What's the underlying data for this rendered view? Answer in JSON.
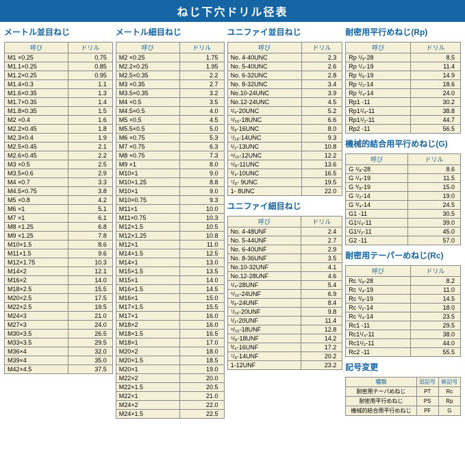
{
  "title": "ねじ下穴ドリル径表",
  "headers": {
    "name": "呼び",
    "drill": "ドリル",
    "type": "種類",
    "old": "旧記号",
    "new": "新記号"
  },
  "sections": {
    "s1": {
      "title": "メートル並目ねじ",
      "rows": [
        [
          "M1 ×0.25",
          "0.75"
        ],
        [
          "M1.1×0.25",
          "0.85"
        ],
        [
          "M1.2×0.25",
          "0.95"
        ],
        [
          "M1.4×0.3",
          "1.1"
        ],
        [
          "M1.6×0.35",
          "1.3"
        ],
        [
          "M1.7×0.35",
          "1.4"
        ],
        [
          "M1.8×0.35",
          "1.5"
        ],
        [
          "M2 ×0.4",
          "1.6"
        ],
        [
          "M2.2×0.45",
          "1.8"
        ],
        [
          "M2.3×0.4",
          "1.9"
        ],
        [
          "M2.5×0.45",
          "2.1"
        ],
        [
          "M2.6×0.45",
          "2.2"
        ],
        [
          "M3 ×0.5",
          "2.5"
        ],
        [
          "M3.5×0.6",
          "2.9"
        ],
        [
          "M4 ×0.7",
          "3.3"
        ],
        [
          "M4.5×0.75",
          "3.8"
        ],
        [
          "M5 ×0.8",
          "4.2"
        ],
        [
          "M6 ×1",
          "5.1"
        ],
        [
          "M7 ×1",
          "6.1"
        ],
        [
          "M8 ×1.25",
          "6.8"
        ],
        [
          "M9 ×1.25",
          "7.8"
        ],
        [
          "M10×1.5",
          "8.6"
        ],
        [
          "M11×1.5",
          "9.6"
        ],
        [
          "M12×1.75",
          "10.3"
        ],
        [
          "M14×2",
          "12.1"
        ],
        [
          "M16×2",
          "14.0"
        ],
        [
          "M18×2.5",
          "15.5"
        ],
        [
          "M20×2.5",
          "17.5"
        ],
        [
          "M22×2.5",
          "19.5"
        ],
        [
          "M24×3",
          "21.0"
        ],
        [
          "M27×3",
          "24.0"
        ],
        [
          "M30×3.5",
          "26.5"
        ],
        [
          "M33×3.5",
          "29.5"
        ],
        [
          "M36×4",
          "32.0"
        ],
        [
          "M39×4",
          "35.0"
        ],
        [
          "M42×4.5",
          "37.5"
        ]
      ]
    },
    "s2": {
      "title": "メートル細目ねじ",
      "rows": [
        [
          "M2 ×0.25",
          "1.75"
        ],
        [
          "M2.2×0.25",
          "1.95"
        ],
        [
          "M2.5×0.35",
          "2.2"
        ],
        [
          "M3 ×0.35",
          "2.7"
        ],
        [
          "M3.5×0.35",
          "3.2"
        ],
        [
          "M4 ×0.5",
          "3.5"
        ],
        [
          "M4.5×0.5",
          "4.0"
        ],
        [
          "M5 ×0.5",
          "4.5"
        ],
        [
          "M5.5×0.5",
          "5.0"
        ],
        [
          "M6 ×0.75",
          "5.3"
        ],
        [
          "M7 ×0.75",
          "6.3"
        ],
        [
          "M8 ×0.75",
          "7.3"
        ],
        [
          "M9 ×1",
          "8.0"
        ],
        [
          "M10×1",
          "9.0"
        ],
        [
          "M10×1.25",
          "8.8"
        ],
        [
          "M10×1",
          "9.0"
        ],
        [
          "M10×0.75",
          "9.3"
        ],
        [
          "M11×1",
          "10.0"
        ],
        [
          "M11×0.75",
          "10.3"
        ],
        [
          "M12×1.5",
          "10.5"
        ],
        [
          "M12×1.25",
          "10.8"
        ],
        [
          "M12×1",
          "11.0"
        ],
        [
          "M14×1.5",
          "12.5"
        ],
        [
          "M14×1",
          "13.0"
        ],
        [
          "M15×1.5",
          "13.5"
        ],
        [
          "M15×1",
          "14.0"
        ],
        [
          "M16×1.5",
          "14.5"
        ],
        [
          "M16×1",
          "15.0"
        ],
        [
          "M17×1.5",
          "15.5"
        ],
        [
          "M17×1",
          "16.0"
        ],
        [
          "M18×2",
          "16.0"
        ],
        [
          "M18×1.5",
          "16.5"
        ],
        [
          "M18×1",
          "17.0"
        ],
        [
          "M20×2",
          "18.0"
        ],
        [
          "M20×1.5",
          "18.5"
        ],
        [
          "M20×1",
          "19.0"
        ],
        [
          "M22×2",
          "20.0"
        ],
        [
          "M22×1.5",
          "20.5"
        ],
        [
          "M22×1",
          "21.0"
        ],
        [
          "M24×2",
          "22.0"
        ],
        [
          "M24×1.5",
          "22.5"
        ]
      ]
    },
    "s3": {
      "title": "ユニファイ並目ねじ",
      "rows": [
        [
          "No. 4-40UNC",
          "2.3"
        ],
        [
          "No. 5-40UNC",
          "2.6"
        ],
        [
          "No. 6-32UNC",
          "2.8"
        ],
        [
          "No. 8-32UNC",
          "3.4"
        ],
        [
          "No.10-24UNC",
          "3.9"
        ],
        [
          "No.12-24UNC",
          "4.5"
        ],
        [
          "¹/₄-20UNC",
          "5.2"
        ],
        [
          "⁵/₁₆-18UNC",
          "6.6"
        ],
        [
          "³/₈-16UNC",
          "8.0"
        ],
        [
          "⁷/₁₆-14UNC",
          "9.3"
        ],
        [
          "¹/₂-13UNC",
          "10.8"
        ],
        [
          "⁹/₁₆-12UNC",
          "12.2"
        ],
        [
          "⁵/₈-11UNC",
          "13.6"
        ],
        [
          "³/₄-10UNC",
          "16.5"
        ],
        [
          "⁷/₈- 9UNC",
          "19.5"
        ],
        [
          "1- 8UNC",
          "22.0"
        ]
      ]
    },
    "s4": {
      "title": "ユニファイ細目ねじ",
      "rows": [
        [
          "No. 4-48UNF",
          "2.4"
        ],
        [
          "No. 5-44UNF",
          "2.7"
        ],
        [
          "No. 6-40UNF",
          "2.9"
        ],
        [
          "No. 8-36UNF",
          "3.5"
        ],
        [
          "No.10-32UNF",
          "4.1"
        ],
        [
          "No.12-28UNF",
          "4.6"
        ],
        [
          "¹/₄-28UNF",
          "5.4"
        ],
        [
          "⁵/₁₆-24UNF",
          "6.9"
        ],
        [
          "³/₈-24UNF",
          "8.4"
        ],
        [
          "⁷/₁₆-20UNF",
          "9.8"
        ],
        [
          "¹/₂-20UNF",
          "11.4"
        ],
        [
          "⁹/₁₆-18UNF",
          "12.8"
        ],
        [
          "⁵/₈-18UNF",
          "14.2"
        ],
        [
          "³/₄-16UNF",
          "17.2"
        ],
        [
          "⁷/₈-14UNF",
          "20.2"
        ],
        [
          "1-12UNF",
          "23.2"
        ]
      ]
    },
    "s5": {
      "title": "耐密用平行めねじ(Rp)",
      "rows": [
        [
          "Rp ¹/₈-28",
          "8.5"
        ],
        [
          "Rp ¹/₄-19",
          "11.4"
        ],
        [
          "Rp ³/₈-19",
          "14.9"
        ],
        [
          "Rp ¹/₂-14",
          "18.6"
        ],
        [
          "Rp ³/₄-14",
          "24.0"
        ],
        [
          "Rp1 -11",
          "30.2"
        ],
        [
          "Rp1¹/₄-11",
          "38.8"
        ],
        [
          "Rp1¹/₂-11",
          "44.7"
        ],
        [
          "Rp2 -11",
          "56.5"
        ]
      ]
    },
    "s6": {
      "title": "機械的結合用平行めねじ(G)",
      "rows": [
        [
          "G ¹/₈-28",
          "8.6"
        ],
        [
          "G ¹/₄-19",
          "11.5"
        ],
        [
          "G ³/₈-19",
          "15.0"
        ],
        [
          "G ¹/₂-14",
          "19.0"
        ],
        [
          "G ³/₄-14",
          "24.5"
        ],
        [
          "G1 -11",
          "30.5"
        ],
        [
          "G1¹/₄-11",
          "39.0"
        ],
        [
          "G1¹/₂-11",
          "45.0"
        ],
        [
          "G2 -11",
          "57.0"
        ]
      ]
    },
    "s7": {
      "title": "耐密用テーパーめねじ(Rc)",
      "rows": [
        [
          "Rc ¹/₈-28",
          "8.2"
        ],
        [
          "Rc ¹/₄-19",
          "11.0"
        ],
        [
          "Rc ³/₈-19",
          "14.5"
        ],
        [
          "Rc ¹/₂-14",
          "18.0"
        ],
        [
          "Rc ³/₄-14",
          "23.5"
        ],
        [
          "Rc1 -11",
          "29.5"
        ],
        [
          "Rc1¹/₄-11",
          "38.0"
        ],
        [
          "Rc1¹/₂-11",
          "44.0"
        ],
        [
          "Rc2 -11",
          "55.5"
        ]
      ]
    },
    "s8": {
      "title": "記号変更",
      "rows": [
        [
          "耐密用テーパめねじ",
          "PT",
          "Rc"
        ],
        [
          "耐密用平行めねじ",
          "PS",
          "Rp"
        ],
        [
          "機械的結合用平行めねじ",
          "PF",
          "G"
        ]
      ]
    }
  }
}
